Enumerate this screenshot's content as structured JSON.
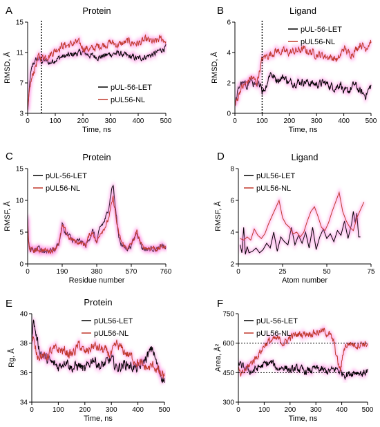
{
  "figure": {
    "colors": {
      "black_series": "#000000",
      "red_series": "#c0392b",
      "glow": "#ff7fe0",
      "axis": "#000000"
    }
  },
  "chart_data": [
    {
      "panel_letter": "A",
      "title": "Protein",
      "type": "line",
      "xlabel": "Time, ns",
      "ylabel": "RMSD, Å",
      "xlim": [
        0,
        500
      ],
      "ylim": [
        3,
        15
      ],
      "xticks": [
        0,
        100,
        200,
        300,
        400,
        500
      ],
      "yticks": [
        3,
        7,
        11,
        15
      ],
      "vlines": [
        50
      ],
      "hlines": [],
      "legend_position": "bottom-right",
      "series": [
        {
          "name": "pUL-56-LET",
          "color": "#000000",
          "x": [
            0,
            5,
            10,
            20,
            30,
            40,
            50,
            60,
            80,
            100,
            120,
            150,
            180,
            200,
            230,
            260,
            300,
            330,
            360,
            400,
            430,
            460,
            480,
            500
          ],
          "y": [
            3.2,
            5.5,
            8.0,
            9.5,
            10.0,
            10.2,
            9.8,
            10.0,
            9.6,
            10.1,
            10.4,
            10.6,
            10.9,
            11.0,
            10.6,
            10.4,
            10.8,
            10.9,
            10.5,
            10.2,
            10.5,
            10.8,
            11.3,
            11.7
          ],
          "noise": 0.45
        },
        {
          "name": "pUL56-NL",
          "color": "#c0392b",
          "x": [
            0,
            5,
            10,
            20,
            30,
            40,
            50,
            60,
            80,
            100,
            120,
            150,
            180,
            200,
            230,
            260,
            300,
            330,
            360,
            400,
            430,
            460,
            480,
            500
          ],
          "y": [
            3.2,
            5.0,
            6.8,
            8.2,
            9.4,
            10.4,
            10.3,
            10.5,
            10.7,
            11.3,
            11.9,
            12.0,
            12.3,
            11.7,
            11.4,
            11.9,
            12.3,
            12.0,
            12.4,
            12.2,
            12.6,
            12.3,
            12.8,
            12.6
          ],
          "noise": 0.6
        }
      ]
    },
    {
      "panel_letter": "B",
      "title": "Ligand",
      "type": "line",
      "xlabel": "Time, ns",
      "ylabel": "RMSD, Å",
      "xlim": [
        0,
        500
      ],
      "ylim": [
        0,
        6
      ],
      "xticks": [
        0,
        100,
        200,
        300,
        400,
        500
      ],
      "yticks": [
        0,
        2,
        4,
        6
      ],
      "vlines": [
        100
      ],
      "hlines": [],
      "legend_position": "top-right",
      "series": [
        {
          "name": "pUL-56-LET",
          "color": "#000000",
          "x": [
            0,
            10,
            20,
            40,
            60,
            80,
            95,
            100,
            110,
            130,
            150,
            180,
            200,
            250,
            300,
            330,
            350,
            370,
            390,
            400,
            420,
            440,
            460,
            480,
            500
          ],
          "y": [
            0.5,
            1.3,
            2.0,
            1.8,
            2.2,
            1.6,
            2.1,
            1.5,
            1.6,
            2.7,
            2.2,
            2.4,
            2.0,
            2.1,
            1.9,
            2.0,
            1.8,
            1.7,
            2.0,
            1.3,
            1.5,
            1.9,
            1.4,
            1.2,
            1.8
          ],
          "noise": 0.3
        },
        {
          "name": "pUL56-NL",
          "color": "#c0392b",
          "x": [
            0,
            10,
            20,
            40,
            60,
            80,
            95,
            100,
            110,
            130,
            150,
            200,
            250,
            300,
            350,
            380,
            400,
            420,
            440,
            460,
            480,
            500
          ],
          "y": [
            0.5,
            1.0,
            1.6,
            1.9,
            2.4,
            2.0,
            3.2,
            3.5,
            3.7,
            3.9,
            4.1,
            4.0,
            4.2,
            3.9,
            3.7,
            3.5,
            4.3,
            3.9,
            4.1,
            4.6,
            4.3,
            4.8
          ],
          "noise": 0.3
        }
      ]
    },
    {
      "panel_letter": "C",
      "title": "Protein",
      "type": "line",
      "xlabel": "Residue number",
      "ylabel": "RMSF, Å",
      "xlim": [
        0,
        760
      ],
      "ylim": [
        0,
        15
      ],
      "xticks": [
        0,
        190,
        380,
        570,
        760
      ],
      "yticks": [
        0,
        5,
        10,
        15
      ],
      "vlines": [],
      "hlines": [],
      "legend_position": "top-left",
      "series": [
        {
          "name": "pUL-56-LET",
          "color": "#000000",
          "x": [
            0,
            4,
            8,
            15,
            30,
            60,
            90,
            120,
            150,
            175,
            190,
            205,
            230,
            260,
            290,
            320,
            340,
            360,
            380,
            400,
            420,
            440,
            460,
            470,
            480,
            490,
            500,
            520,
            540,
            560,
            580,
            600,
            630,
            660,
            690,
            720,
            740,
            760
          ],
          "y": [
            7.5,
            3.8,
            2.8,
            2.3,
            2.0,
            2.3,
            2.0,
            2.2,
            2.3,
            3.5,
            6.3,
            5.0,
            4.3,
            3.4,
            3.6,
            2.8,
            4.2,
            5.2,
            3.2,
            5.8,
            6.6,
            8.0,
            11.5,
            12.6,
            9.5,
            7.0,
            4.5,
            2.8,
            2.5,
            2.6,
            3.5,
            5.2,
            2.5,
            2.3,
            2.5,
            2.2,
            3.0,
            2.4
          ],
          "noise": 0.5
        },
        {
          "name": "pUL56-NL",
          "color": "#c0392b",
          "x": [
            0,
            4,
            8,
            15,
            30,
            60,
            90,
            120,
            150,
            175,
            190,
            205,
            230,
            260,
            290,
            320,
            340,
            360,
            380,
            400,
            420,
            440,
            460,
            470,
            480,
            490,
            500,
            520,
            540,
            560,
            580,
            600,
            630,
            660,
            690,
            720,
            740,
            760
          ],
          "y": [
            7.0,
            3.5,
            2.6,
            2.3,
            2.1,
            2.2,
            2.2,
            2.0,
            2.4,
            3.6,
            5.8,
            5.3,
            4.0,
            3.6,
            3.3,
            3.0,
            4.6,
            5.0,
            3.3,
            5.0,
            5.6,
            6.6,
            9.0,
            10.4,
            8.6,
            6.4,
            4.8,
            3.2,
            2.6,
            2.7,
            3.6,
            5.0,
            2.7,
            2.5,
            2.6,
            2.3,
            2.8,
            2.5
          ],
          "noise": 0.45
        }
      ]
    },
    {
      "panel_letter": "D",
      "title": "Ligand",
      "type": "line",
      "xlabel": "Atom number",
      "ylabel": "RMSF, Å",
      "xlim": [
        0,
        75
      ],
      "ylim": [
        2,
        8
      ],
      "xticks": [
        0,
        25,
        50,
        75
      ],
      "yticks": [
        2,
        4,
        6,
        8
      ],
      "vlines": [],
      "hlines": [],
      "legend_position": "top-left",
      "series": [
        {
          "name": "pUL56-LET",
          "color": "#000000",
          "x": [
            1,
            2,
            3,
            4,
            5,
            6,
            8,
            10,
            12,
            14,
            16,
            18,
            20,
            22,
            24,
            26,
            28,
            30,
            32,
            34,
            36,
            38,
            40,
            42,
            44,
            46,
            48,
            50,
            52,
            54,
            56,
            58,
            60,
            62,
            64,
            65,
            66,
            67,
            68,
            69
          ],
          "y": [
            3.2,
            2.7,
            4.3,
            2.6,
            3.1,
            2.7,
            2.8,
            3.0,
            2.7,
            2.9,
            3.3,
            3.0,
            4.0,
            2.8,
            3.7,
            3.4,
            3.2,
            4.3,
            3.2,
            3.8,
            3.3,
            4.0,
            3.0,
            4.3,
            2.9,
            3.7,
            4.2,
            3.6,
            3.9,
            3.4,
            4.1,
            3.8,
            4.7,
            3.6,
            4.5,
            5.3,
            4.6,
            5.2,
            3.7,
            3.7
          ],
          "noise": 0.0
        },
        {
          "name": "pUL56-NL",
          "color": "#c0392b",
          "x": [
            1,
            3,
            5,
            7,
            9,
            11,
            13,
            15,
            17,
            19,
            21,
            23,
            25,
            27,
            29,
            31,
            33,
            35,
            37,
            39,
            41,
            43,
            45,
            47,
            49,
            51,
            53,
            55,
            57,
            59,
            61,
            63,
            65,
            67,
            69,
            71
          ],
          "y": [
            3.6,
            3.5,
            3.7,
            3.5,
            4.2,
            3.8,
            3.6,
            3.9,
            4.5,
            5.0,
            5.5,
            6.0,
            4.9,
            4.5,
            4.3,
            3.9,
            4.0,
            3.7,
            4.0,
            4.7,
            5.3,
            5.6,
            5.0,
            4.3,
            4.1,
            4.6,
            5.3,
            5.9,
            6.5,
            5.3,
            4.7,
            4.3,
            4.1,
            4.9,
            5.4,
            5.9
          ],
          "noise": 0.0
        }
      ]
    },
    {
      "panel_letter": "E",
      "title": "Protein",
      "type": "line",
      "xlabel": "Time, ns",
      "ylabel": "Rg, Å",
      "xlim": [
        0,
        500
      ],
      "ylim": [
        34,
        40
      ],
      "xticks": [
        0,
        100,
        200,
        300,
        400,
        500
      ],
      "yticks": [
        34,
        36,
        38,
        40
      ],
      "vlines": [],
      "hlines": [],
      "legend_position": "top-right",
      "series": [
        {
          "name": "pUL56-LET",
          "color": "#000000",
          "x": [
            0,
            5,
            10,
            20,
            30,
            50,
            70,
            100,
            130,
            150,
            180,
            200,
            230,
            260,
            300,
            320,
            350,
            380,
            400,
            420,
            440,
            455,
            470,
            485,
            500
          ],
          "y": [
            38.5,
            39.6,
            39.2,
            38.2,
            37.5,
            37.0,
            36.7,
            36.4,
            36.9,
            36.3,
            36.5,
            36.1,
            37.0,
            36.4,
            36.9,
            36.3,
            36.6,
            36.4,
            36.2,
            36.7,
            37.2,
            37.7,
            36.6,
            35.9,
            35.5
          ],
          "noise": 0.4
        },
        {
          "name": "pUL56-NL",
          "color": "#c0392b",
          "x": [
            0,
            5,
            10,
            20,
            30,
            50,
            70,
            100,
            130,
            150,
            180,
            200,
            230,
            260,
            300,
            320,
            350,
            380,
            400,
            420,
            440,
            460,
            480,
            500
          ],
          "y": [
            38.0,
            38.3,
            37.8,
            37.3,
            37.2,
            37.0,
            37.4,
            37.6,
            37.4,
            37.2,
            37.9,
            37.3,
            37.8,
            37.6,
            37.2,
            37.9,
            37.4,
            37.0,
            36.7,
            36.4,
            36.3,
            36.5,
            36.0,
            35.6
          ],
          "noise": 0.4
        }
      ]
    },
    {
      "panel_letter": "F",
      "title": "",
      "type": "line",
      "xlabel": "Time, ns",
      "ylabel": "Area, Å²",
      "xlim": [
        0,
        500
      ],
      "ylim": [
        300,
        750
      ],
      "xticks": [
        0,
        100,
        200,
        300,
        400,
        500
      ],
      "yticks": [
        300,
        450,
        600,
        750
      ],
      "vlines": [],
      "hlines": [
        600,
        450
      ],
      "legend_position": "top-left",
      "series": [
        {
          "name": "pUL-56-LET",
          "color": "#000000",
          "x": [
            0,
            10,
            30,
            50,
            70,
            100,
            130,
            150,
            180,
            200,
            230,
            260,
            300,
            330,
            350,
            380,
            400,
            420,
            440,
            460,
            480,
            500
          ],
          "y": [
            510,
            480,
            470,
            455,
            470,
            490,
            500,
            470,
            480,
            460,
            470,
            455,
            470,
            460,
            455,
            470,
            450,
            440,
            450,
            455,
            445,
            460
          ],
          "noise": 22
        },
        {
          "name": "pUL56-NL",
          "color": "#c0392b",
          "x": [
            0,
            10,
            30,
            50,
            70,
            90,
            100,
            120,
            150,
            180,
            200,
            230,
            260,
            300,
            330,
            350,
            370,
            385,
            395,
            410,
            430,
            460,
            480,
            500
          ],
          "y": [
            470,
            430,
            470,
            500,
            530,
            565,
            590,
            610,
            620,
            600,
            630,
            645,
            650,
            655,
            660,
            650,
            600,
            500,
            460,
            580,
            600,
            590,
            600,
            595
          ],
          "noise": 22
        }
      ]
    }
  ]
}
